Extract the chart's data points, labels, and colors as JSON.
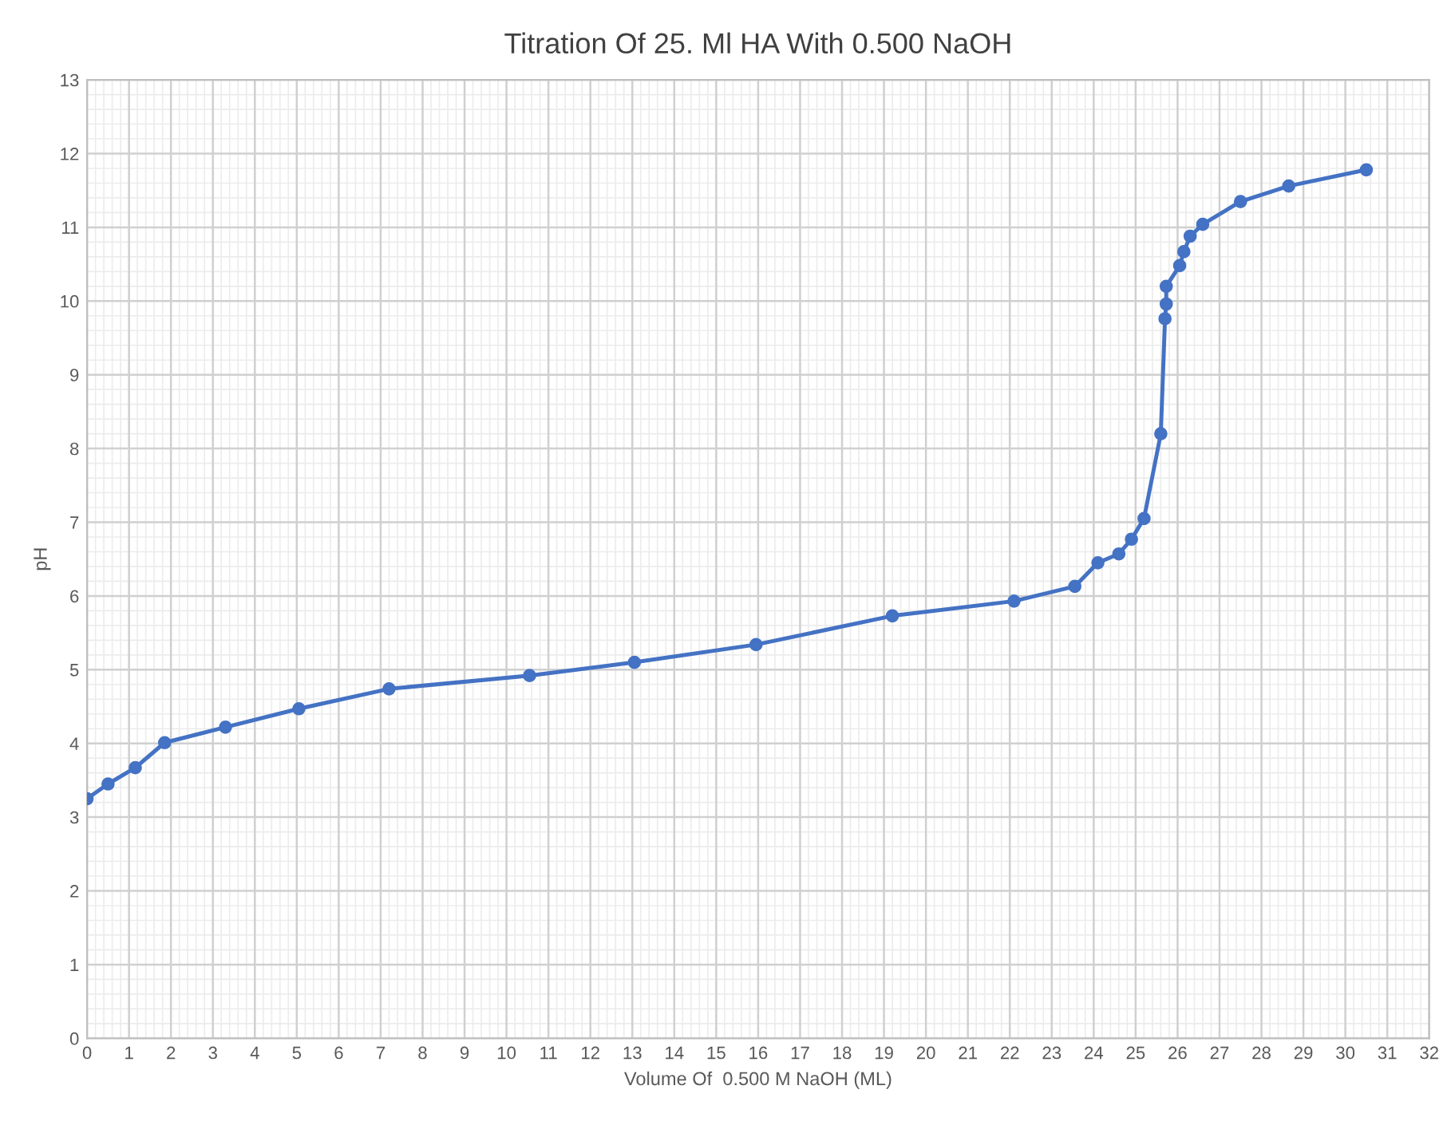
{
  "chart_data": {
    "type": "line",
    "title": "Titration Of 25. Ml HA With 0.500 NaOH",
    "xlabel": "Volume Of  0.500 M NaOH (ML)",
    "ylabel": "pH",
    "series": [
      {
        "color": "#4472c4",
        "x": [
          0,
          0.5,
          1.15,
          1.85,
          3.3,
          5.05,
          7.2,
          10.55,
          13.05,
          15.95,
          19.2,
          22.1,
          23.55,
          24.1,
          24.6,
          24.9,
          25.2,
          25.6,
          25.7,
          25.73,
          25.73,
          26.05,
          26.15,
          26.3,
          26.6,
          27.5,
          28.65,
          30.5
        ],
        "values": [
          3.25,
          3.45,
          3.67,
          4.01,
          4.22,
          4.47,
          4.74,
          4.92,
          5.1,
          5.34,
          5.73,
          5.93,
          6.13,
          6.45,
          6.57,
          6.77,
          7.05,
          8.2,
          9.76,
          9.96,
          10.2,
          10.48,
          10.67,
          10.88,
          11.04,
          11.35,
          11.56,
          11.78
        ]
      }
    ],
    "xlim": [
      0,
      32
    ],
    "xticks": [
      0,
      1,
      2,
      3,
      4,
      5,
      6,
      7,
      8,
      9,
      10,
      11,
      12,
      13,
      14,
      15,
      16,
      17,
      18,
      19,
      20,
      21,
      22,
      23,
      24,
      25,
      26,
      27,
      28,
      29,
      30,
      31,
      32
    ],
    "ylim": [
      0,
      13
    ],
    "yticks": [
      0,
      1,
      2,
      3,
      4,
      5,
      6,
      7,
      8,
      9,
      10,
      11,
      12,
      13
    ],
    "grid": true,
    "marker": "circle",
    "line_style": "solid",
    "legend": false
  }
}
